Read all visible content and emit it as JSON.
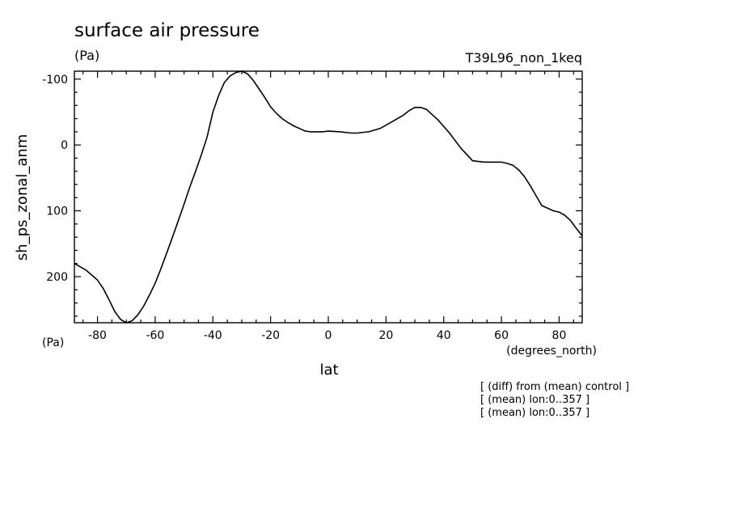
{
  "chart_data": {
    "type": "line",
    "title": "surface air pressure",
    "units": "(Pa)",
    "run_id": "T39L96_non_1keq",
    "xlabel": "lat",
    "x_units": "(degrees_north)",
    "ylabel": "sh_ps_zonal_anm",
    "y_units": "(Pa)",
    "xlim": [
      -88,
      88
    ],
    "ylim": [
      270,
      -112
    ],
    "y_inverted": true,
    "x_ticks": [
      -80,
      -60,
      -40,
      -20,
      0,
      20,
      40,
      60,
      80
    ],
    "x_tick_labels": [
      "-80",
      "-60",
      "-40",
      "-20",
      "0",
      "20",
      "40",
      "60",
      "80"
    ],
    "y_ticks": [
      -100,
      0,
      100,
      200
    ],
    "y_tick_labels": [
      "-100",
      "0",
      "100",
      "200"
    ],
    "grid": false,
    "series": [
      {
        "color": "#000000",
        "x": [
          -88,
          -84,
          -80,
          -78,
          -76,
          -74,
          -72,
          -70,
          -68,
          -66,
          -64,
          -62,
          -60,
          -58,
          -56,
          -54,
          -52,
          -50,
          -48,
          -46,
          -44,
          -42,
          -40,
          -38,
          -36,
          -34,
          -32,
          -30,
          -28,
          -26,
          -24,
          -22,
          -20,
          -18,
          -16,
          -14,
          -12,
          -10,
          -8,
          -6,
          -4,
          -2,
          0,
          4,
          8,
          10,
          14,
          18,
          22,
          26,
          28,
          30,
          32,
          34,
          38,
          42,
          46,
          50,
          54,
          58,
          60,
          62,
          64,
          66,
          68,
          70,
          74,
          78,
          80,
          82,
          84,
          86,
          88
        ],
        "y": [
          180,
          190,
          205,
          218,
          235,
          253,
          265,
          270,
          267,
          258,
          245,
          228,
          210,
          188,
          164,
          140,
          115,
          90,
          64,
          40,
          15,
          -12,
          -50,
          -75,
          -95,
          -105,
          -110,
          -112,
          -108,
          -98,
          -85,
          -72,
          -58,
          -48,
          -40,
          -34,
          -29,
          -25,
          -21,
          -20,
          -20,
          -20,
          -21,
          -20,
          -18,
          -18,
          -20,
          -25,
          -35,
          -45,
          -52,
          -57,
          -57,
          -54,
          -38,
          -18,
          5,
          24,
          26,
          26,
          26,
          28,
          31,
          38,
          48,
          62,
          92,
          100,
          102,
          107,
          115,
          127,
          138
        ]
      }
    ]
  },
  "notes": [
    "[ (diff) from (mean) control ]",
    "[ (mean) lon:0..357 ]",
    "[ (mean) lon:0..357 ]"
  ]
}
